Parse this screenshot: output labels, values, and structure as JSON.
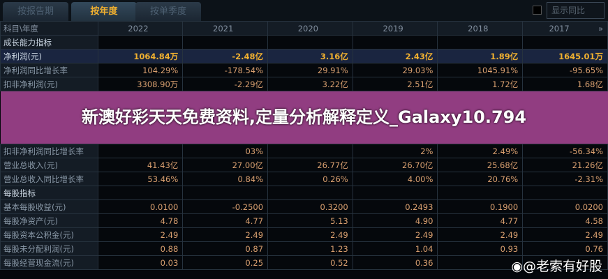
{
  "tabs": [
    "按报告期",
    "按年度",
    "按单季度"
  ],
  "active_tab": 1,
  "show_yoy_label": "显示同比",
  "header": {
    "label": "科目\\年度",
    "years": [
      "2022",
      "2021",
      "2020",
      "2019",
      "2018",
      "2017"
    ],
    "more": "»"
  },
  "rows": [
    {
      "label": "成长能力指标",
      "values": [
        "",
        "",
        "",
        "",
        "",
        ""
      ],
      "type": "sec"
    },
    {
      "label": "净利润(元)",
      "values": [
        "1064.84万",
        "-2.48亿",
        "3.16亿",
        "2.43亿",
        "1.89亿",
        "1645.01万"
      ],
      "type": "hl"
    },
    {
      "label": "净利润同比增长率",
      "values": [
        "104.29%",
        "-178.54%",
        "29.91%",
        "29.03%",
        "1045.91%",
        "-95.65%"
      ]
    },
    {
      "label": "扣非净利润(元)",
      "values": [
        "3308.90万",
        "-2.29亿",
        "3.22亿",
        "2.51亿",
        "1.72亿",
        "1.68亿"
      ]
    },
    {
      "label": "扣非净利润同比增长率",
      "values": [
        "",
        "03%",
        "",
        "2%",
        "2.49%",
        "-56.34%"
      ]
    },
    {
      "label": "营业总收入(元)",
      "values": [
        "41.43亿",
        "27.00亿",
        "26.77亿",
        "26.70亿",
        "25.68亿",
        "21.26亿"
      ]
    },
    {
      "label": "营业总收入同比增长率",
      "values": [
        "53.46%",
        "0.84%",
        "0.26%",
        "4.00%",
        "20.76%",
        "-2.31%"
      ]
    },
    {
      "label": "每股指标",
      "values": [
        "",
        "",
        "",
        "",
        "",
        ""
      ],
      "type": "sec"
    },
    {
      "label": "基本每股收益(元)",
      "values": [
        "0.0100",
        "-0.2500",
        "0.3200",
        "0.2493",
        "0.1900",
        "0.0200"
      ]
    },
    {
      "label": "每股净资产(元)",
      "values": [
        "4.78",
        "4.77",
        "5.13",
        "4.90",
        "4.77",
        "4.58"
      ]
    },
    {
      "label": "每股资本公积金(元)",
      "values": [
        "2.49",
        "2.49",
        "2.49",
        "2.49",
        "2.49",
        "2.49"
      ]
    },
    {
      "label": "每股未分配利润(元)",
      "values": [
        "0.88",
        "0.87",
        "1.23",
        "1.04",
        "0.93",
        "0.76"
      ]
    },
    {
      "label": "每股经营现金流(元)",
      "values": [
        "0.03",
        "0.25",
        "0.52",
        "0.36",
        "",
        ""
      ]
    }
  ],
  "overlay_title": "新澳好彩天天免费资料,定量分析解释定义_Galaxy10.794",
  "watermark": "@老索有好股"
}
